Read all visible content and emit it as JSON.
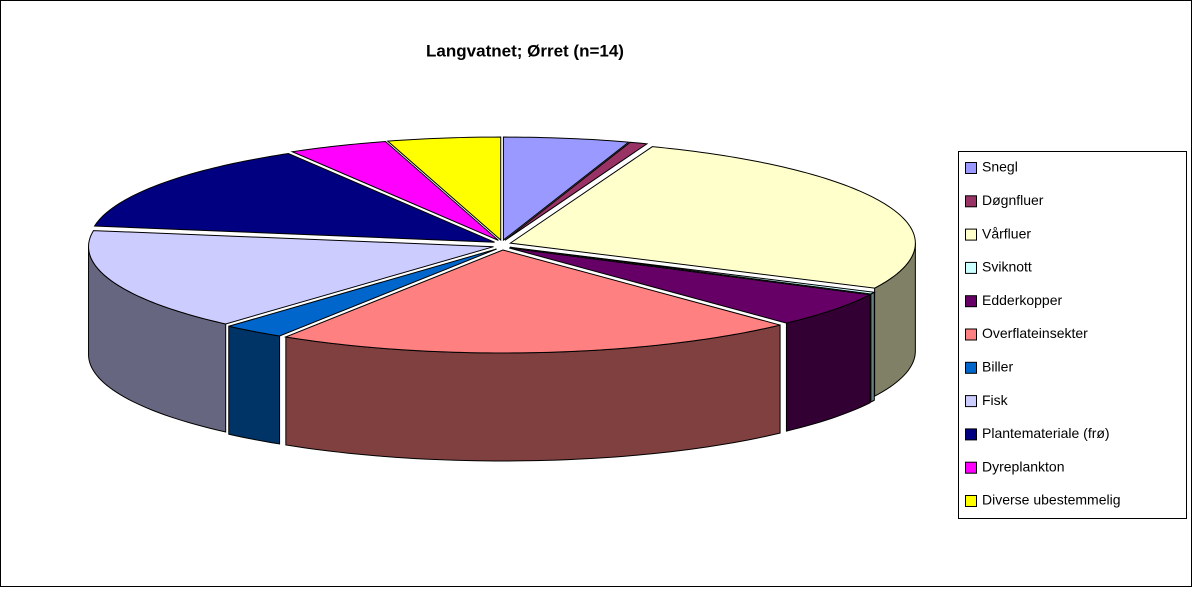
{
  "chart_data": {
    "type": "pie3d",
    "title": "Langvatnet; Ørret (n=14)",
    "categories": [
      "Snegl",
      "Døgnfluer",
      "Vårfluer",
      "Sviknott",
      "Edderkopper",
      "Overflateinsekter",
      "Biller",
      "Fisk",
      "Plantemateriale (frø)",
      "Dyreplankton",
      "Diverse ubestemmelig"
    ],
    "values": [
      5,
      0.7,
      26.5,
      0.3,
      5.5,
      21,
      2.5,
      16,
      14,
      4,
      4.5
    ],
    "colors": [
      "#9999ff",
      "#993366",
      "#ffffcc",
      "#ccffff",
      "#660066",
      "#ff8080",
      "#0066cc",
      "#ccccff",
      "#000080",
      "#ff00ff",
      "#ffff00"
    ],
    "legend": "right"
  }
}
